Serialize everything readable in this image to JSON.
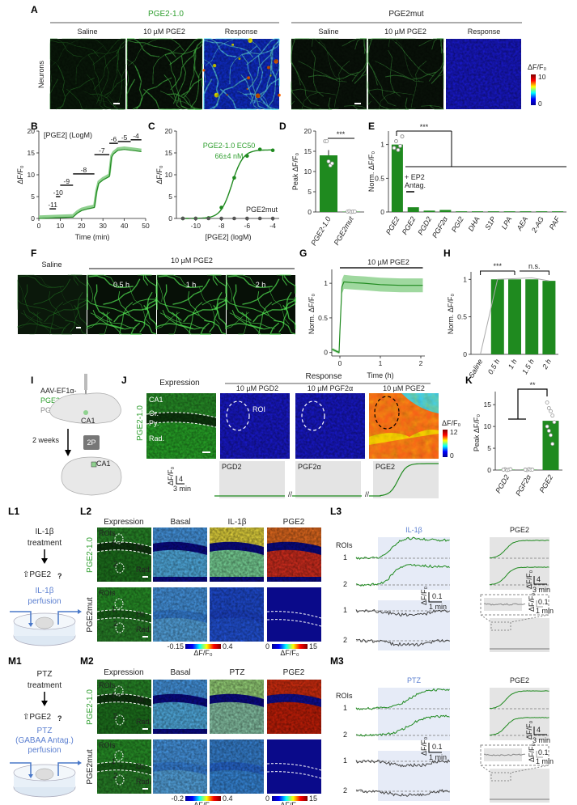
{
  "panel_labels": {
    "A": "A",
    "B": "B",
    "C": "C",
    "D": "D",
    "E": "E",
    "F": "F",
    "G": "G",
    "H": "H",
    "I": "I",
    "J": "J",
    "K": "K",
    "L1": "L1",
    "L2": "L2",
    "L3": "L3",
    "M1": "M1",
    "M2": "M2",
    "M3": "M3"
  },
  "colors": {
    "sensor_green": "#1f8a1f",
    "mut_gray": "#555555",
    "stim_blue": "#5b7fd0",
    "shade_gray": "#e4e4e4",
    "shade_blue": "#e6ebf7",
    "question_red": "#c0141b"
  },
  "panel_a": {
    "group1": "PGE2-1.0",
    "group2": "PGE2mut",
    "cols": [
      "Saline",
      "10 µM PGE2",
      "Response",
      "Saline",
      "10 µM PGE2",
      "Response"
    ],
    "row_label": "Neurons",
    "colorbar": {
      "label": "ΔF/F₀",
      "max": "10",
      "min": "0"
    }
  },
  "panel_f": {
    "saline": "Saline",
    "treatment": "10 µM PGE2",
    "times": [
      "0.5 h",
      "1 h",
      "2 h"
    ]
  },
  "panel_i": {
    "line1": "AAV-EF1α-",
    "line2": "PGE2-1.0",
    "or": "or",
    "line3": "PGE2mut",
    "region": "CA1",
    "wait": "2 weeks",
    "scope": "2P",
    "region2": "CA1"
  },
  "panel_j": {
    "expression": "Expression",
    "response": "Response",
    "cols": [
      "10 µM PGD2",
      "10 µM PGF2α",
      "10 µM PGE2"
    ],
    "row": "PGE2-1.0",
    "layers": [
      "CA1",
      "Or.",
      "Py.",
      "Rad."
    ],
    "roi": "ROI",
    "colorbar": {
      "label": "ΔF/F₀",
      "max": "12",
      "min": "0"
    },
    "traces": [
      "PGD2",
      "PGF2α",
      "PGE2"
    ],
    "scalebar": {
      "ylabel": "ΔF/F₀",
      "y": "4",
      "x": "3 min"
    }
  },
  "panel_l": {
    "l1": {
      "line1": "IL-1β",
      "line2": "treatment",
      "result": "⇧PGE2",
      "q": "?",
      "perf1": "IL-1β",
      "perf2": "perfusion"
    },
    "l2": {
      "cols": [
        "Expression",
        "Basal",
        "IL-1β",
        "PGE2"
      ],
      "rows": [
        "PGE2-1.0",
        "PGE2mut"
      ],
      "rois": "ROIs",
      "roi1": "1",
      "roi2": "2",
      "or": "Or.",
      "rad": "Rad.",
      "cb1": {
        "min": "-0.15",
        "max": "0.4",
        "label": "ΔF/F₀"
      },
      "cb2": {
        "min": "0",
        "max": "15",
        "label": "ΔF/F₀"
      }
    },
    "l3": {
      "stim": "IL-1β",
      "pge2": "PGE2",
      "rois": "ROIs",
      "r1": "1",
      "r2": "2",
      "sb1": {
        "ylabel": "ΔF/F₀",
        "y": "0.1",
        "x": "1 min"
      },
      "sb2": {
        "ylabel": "ΔF/F₀",
        "y": "4",
        "x": "3 min"
      },
      "sb3": {
        "ylabel": "ΔF/F₀",
        "y": "0.1",
        "x": "1 min"
      }
    }
  },
  "panel_m": {
    "m1": {
      "line1": "PTZ",
      "line2": "treatment",
      "result": "⇧PGE2",
      "q": "?",
      "perf1": "PTZ",
      "perf2": "(GABAA Antag.)",
      "perf3": "perfusion"
    },
    "m2": {
      "cols": [
        "Expression",
        "Basal",
        "PTZ",
        "PGE2"
      ],
      "rows": [
        "PGE2-1.0",
        "PGE2mut"
      ],
      "rois": "ROIs",
      "roi1": "1",
      "roi2": "2",
      "or": "Or.",
      "rad": "Rad.",
      "cb1": {
        "min": "-0.2",
        "max": "0.4",
        "label": "ΔF/F₀"
      },
      "cb2": {
        "min": "0",
        "max": "15",
        "label": "ΔF/F₀"
      }
    },
    "m3": {
      "stim": "PTZ",
      "pge2": "PGE2",
      "rois": "ROIs",
      "r1": "1",
      "r2": "2",
      "sb1": {
        "ylabel": "ΔF/F₀",
        "y": "0.1",
        "x": "1 min"
      },
      "sb2": {
        "ylabel": "ΔF/F₀",
        "y": "4",
        "x": "3 min"
      },
      "sb3": {
        "ylabel": "ΔF/F₀",
        "y": "0.1",
        "x": "1 min"
      }
    }
  },
  "chart_data": [
    {
      "id": "B",
      "type": "line",
      "xlabel": "Time (min)",
      "ylabel": "ΔF/F₀",
      "xlim": [
        0,
        50
      ],
      "ylim": [
        0,
        20
      ],
      "xticks": [
        "0",
        "10",
        "20",
        "30",
        "40",
        "50"
      ],
      "yticks": [
        "0",
        "5",
        "10",
        "15",
        "20"
      ],
      "annotation_title": "[PGE2] (LogM)",
      "concentrations": [
        {
          "label": "-11",
          "start": 5,
          "end": 8
        },
        {
          "label": "-10",
          "start": 8,
          "end": 10
        },
        {
          "label": "-9",
          "start": 10,
          "end": 16
        },
        {
          "label": "-8",
          "start": 16,
          "end": 26
        },
        {
          "label": "-7",
          "start": 26,
          "end": 33
        },
        {
          "label": "-6",
          "start": 33,
          "end": 37
        },
        {
          "label": "-5",
          "start": 37,
          "end": 43
        },
        {
          "label": "-4",
          "start": 43,
          "end": 48
        }
      ],
      "x": [
        0,
        15,
        16,
        18,
        20,
        23,
        26,
        27,
        28,
        30,
        33,
        34,
        35,
        37,
        40,
        45,
        48
      ],
      "y": [
        0,
        0.3,
        0.3,
        1.2,
        1.8,
        2.2,
        2.5,
        6,
        8,
        8.8,
        9.6,
        14,
        14.8,
        15.6,
        15.8,
        15.5,
        15.3
      ]
    },
    {
      "id": "C",
      "type": "scatter",
      "xlabel": "[PGE2] (logM)",
      "ylabel": "ΔF/F₀",
      "xlim": [
        -11.5,
        -3.5
      ],
      "ylim": [
        0,
        20
      ],
      "xticks": [
        "-10",
        "-8",
        "-6",
        "-4"
      ],
      "yticks": [
        "0",
        "5",
        "10",
        "15",
        "20"
      ],
      "annotation": "PGE2-1.0 EC50",
      "annotation2": "66±4 nM",
      "series": [
        {
          "name": "PGE2-1.0",
          "x": [
            -11,
            -10,
            -9,
            -8,
            -7,
            -6,
            -5,
            -4
          ],
          "y": [
            0,
            0,
            0.1,
            2.5,
            9.3,
            14.3,
            15.8,
            15.6
          ]
        },
        {
          "name": "PGE2mut",
          "x": [
            -11,
            -10,
            -9,
            -8,
            -7,
            -6,
            -5,
            -4
          ],
          "y": [
            0,
            0,
            0,
            0,
            0,
            0,
            0,
            0
          ]
        }
      ],
      "ec50_log": -7.18
    },
    {
      "id": "D",
      "type": "bar",
      "ylabel": "Peak ΔF/F₀",
      "ylim": [
        0,
        20
      ],
      "yticks": [
        "0",
        "5",
        "10",
        "15",
        "20"
      ],
      "categories": [
        "PGE2-1.0",
        "PGE2mut"
      ],
      "values": [
        14,
        0.1
      ],
      "sem": [
        1.3,
        0.05
      ],
      "points": [
        [
          17.5,
          17.5,
          12.5,
          11.5,
          12
        ],
        [
          0.1,
          0.2,
          0,
          0.1,
          0.1
        ]
      ],
      "significance": "***"
    },
    {
      "id": "E",
      "type": "bar",
      "ylabel": "Norm. ΔF/F₀",
      "ylim": [
        0,
        1.2
      ],
      "yticks": [
        "0",
        "0.5",
        "1"
      ],
      "categories": [
        "PGE2",
        "PGE2",
        "PGD2",
        "PGF2α",
        "PGI2",
        "DHA",
        "S1P",
        "LPA",
        "AEA",
        "2-AG",
        "PAF"
      ],
      "values": [
        1,
        0.07,
        0.02,
        0.03,
        0.01,
        0.01,
        0.01,
        0.01,
        0.01,
        0.01,
        0.01
      ],
      "annotation": "+ EP2",
      "annotation2": "Antag.",
      "significance": "***"
    },
    {
      "id": "G",
      "type": "line",
      "xlabel": "Time (h)",
      "ylabel": "Norm. ΔF/F₀",
      "xlim": [
        -0.2,
        2.1
      ],
      "ylim": [
        -0.05,
        1.2
      ],
      "xticks": [
        "0",
        "1",
        "2"
      ],
      "yticks": [
        "0",
        "0.5",
        "1"
      ],
      "stimulus": "10 µM PGE2",
      "x": [
        -0.2,
        -0.02,
        0,
        0.05,
        0.1,
        0.3,
        0.6,
        1,
        1.5,
        2.05
      ],
      "y": [
        0.05,
        0,
        0.3,
        0.95,
        1.02,
        1.01,
        1.0,
        0.98,
        0.97,
        0.97
      ]
    },
    {
      "id": "H",
      "type": "bar",
      "ylabel": "Norm. ΔF/F₀",
      "ylim": [
        0,
        1.1
      ],
      "yticks": [
        "0",
        "0.5",
        "1"
      ],
      "categories": [
        "Saline",
        "0.5 h",
        "1 h",
        "1.5 h",
        "2 h"
      ],
      "values": [
        0,
        1,
        1,
        1,
        0.98
      ],
      "significance": [
        "***",
        "n.s."
      ]
    },
    {
      "id": "K",
      "type": "bar",
      "ylabel": "Peak ΔF/F₀",
      "ylim": [
        0,
        18
      ],
      "yticks": [
        "0",
        "5",
        "10",
        "15"
      ],
      "categories": [
        "PGD2",
        "PGF2α",
        "PGE2"
      ],
      "values": [
        0.1,
        0.1,
        11.3
      ],
      "points": [
        [
          0.1,
          0.2,
          0,
          0.1,
          0.2,
          0.1
        ],
        [
          0.1,
          0,
          0.2,
          0.1,
          0.1,
          0.1
        ],
        [
          15.5,
          14.2,
          13.5,
          12.5,
          11,
          10,
          9,
          8,
          6
        ]
      ],
      "significance": "**"
    }
  ]
}
